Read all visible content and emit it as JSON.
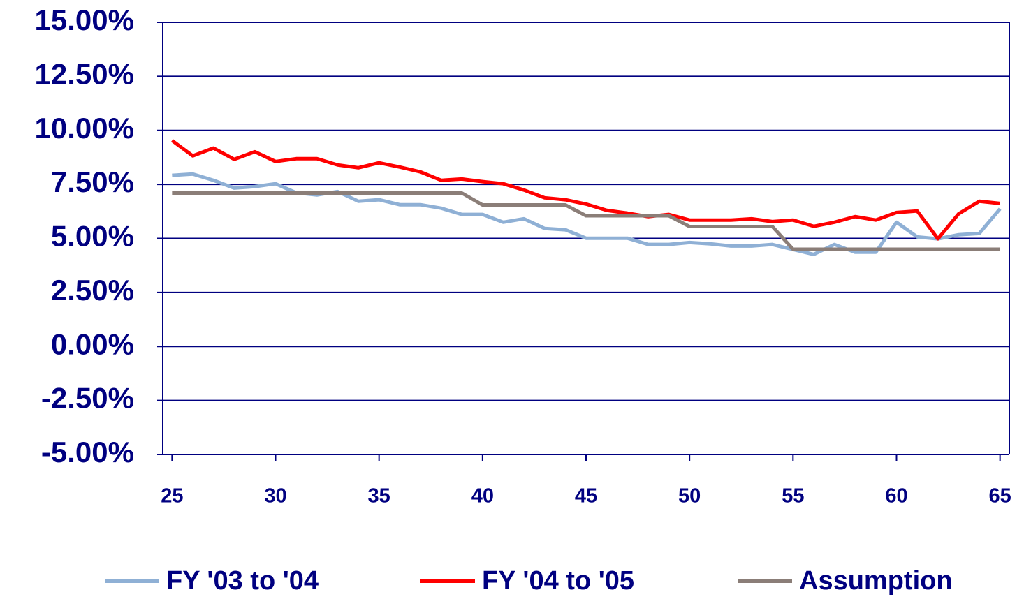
{
  "chart_data": {
    "type": "line",
    "x": [
      25,
      26,
      27,
      28,
      29,
      30,
      31,
      32,
      33,
      34,
      35,
      36,
      37,
      38,
      39,
      40,
      41,
      42,
      43,
      44,
      45,
      46,
      47,
      48,
      49,
      50,
      51,
      52,
      53,
      54,
      55,
      56,
      57,
      58,
      59,
      60,
      61,
      62,
      63,
      64,
      65
    ],
    "xlim": [
      24.55,
      65.45
    ],
    "xticks": [
      25,
      30,
      35,
      40,
      45,
      50,
      55,
      60,
      65
    ],
    "ylim": [
      -5,
      15
    ],
    "yticks": [
      {
        "value": -5,
        "label": "-5.00%"
      },
      {
        "value": -2.5,
        "label": "-2.50%"
      },
      {
        "value": 0,
        "label": "0.00%"
      },
      {
        "value": 2.5,
        "label": "2.50%"
      },
      {
        "value": 5,
        "label": "5.00%"
      },
      {
        "value": 7.5,
        "label": "7.50%"
      },
      {
        "value": 10,
        "label": "10.00%"
      },
      {
        "value": 12.5,
        "label": "12.50%"
      },
      {
        "value": 15,
        "label": "15.00%"
      }
    ],
    "grid": true,
    "series": [
      {
        "name": "FY '03 to '04",
        "color": "#8fb0d5",
        "values": [
          7.92,
          7.98,
          7.69,
          7.33,
          7.4,
          7.53,
          7.11,
          7.01,
          7.17,
          6.72,
          6.79,
          6.56,
          6.56,
          6.4,
          6.11,
          6.11,
          5.75,
          5.91,
          5.46,
          5.4,
          5.01,
          5.01,
          5.01,
          4.72,
          4.72,
          4.81,
          4.75,
          4.65,
          4.65,
          4.72,
          4.49,
          4.26,
          4.72,
          4.36,
          4.36,
          5.75,
          5.07,
          4.98,
          5.17,
          5.23,
          6.37
        ]
      },
      {
        "name": "FY '04 to '05",
        "color": "#ff0000",
        "values": [
          9.53,
          8.82,
          9.18,
          8.66,
          9.01,
          8.56,
          8.69,
          8.69,
          8.4,
          8.27,
          8.5,
          8.3,
          8.08,
          7.69,
          7.75,
          7.63,
          7.53,
          7.24,
          6.88,
          6.79,
          6.59,
          6.3,
          6.17,
          6.01,
          6.11,
          5.85,
          5.85,
          5.85,
          5.91,
          5.78,
          5.85,
          5.56,
          5.75,
          6.01,
          5.85,
          6.2,
          6.27,
          4.98,
          6.14,
          6.72,
          6.62
        ]
      },
      {
        "name": "Assumption",
        "color": "#8b7e78",
        "values": [
          7.1,
          7.1,
          7.1,
          7.1,
          7.1,
          7.1,
          7.1,
          7.1,
          7.1,
          7.1,
          7.1,
          7.1,
          7.1,
          7.1,
          7.1,
          6.55,
          6.55,
          6.55,
          6.55,
          6.55,
          6.05,
          6.05,
          6.05,
          6.05,
          6.05,
          5.55,
          5.55,
          5.55,
          5.55,
          5.55,
          4.5,
          4.5,
          4.5,
          4.5,
          4.5,
          4.5,
          4.5,
          4.5,
          4.5,
          4.5,
          4.5
        ]
      }
    ]
  }
}
